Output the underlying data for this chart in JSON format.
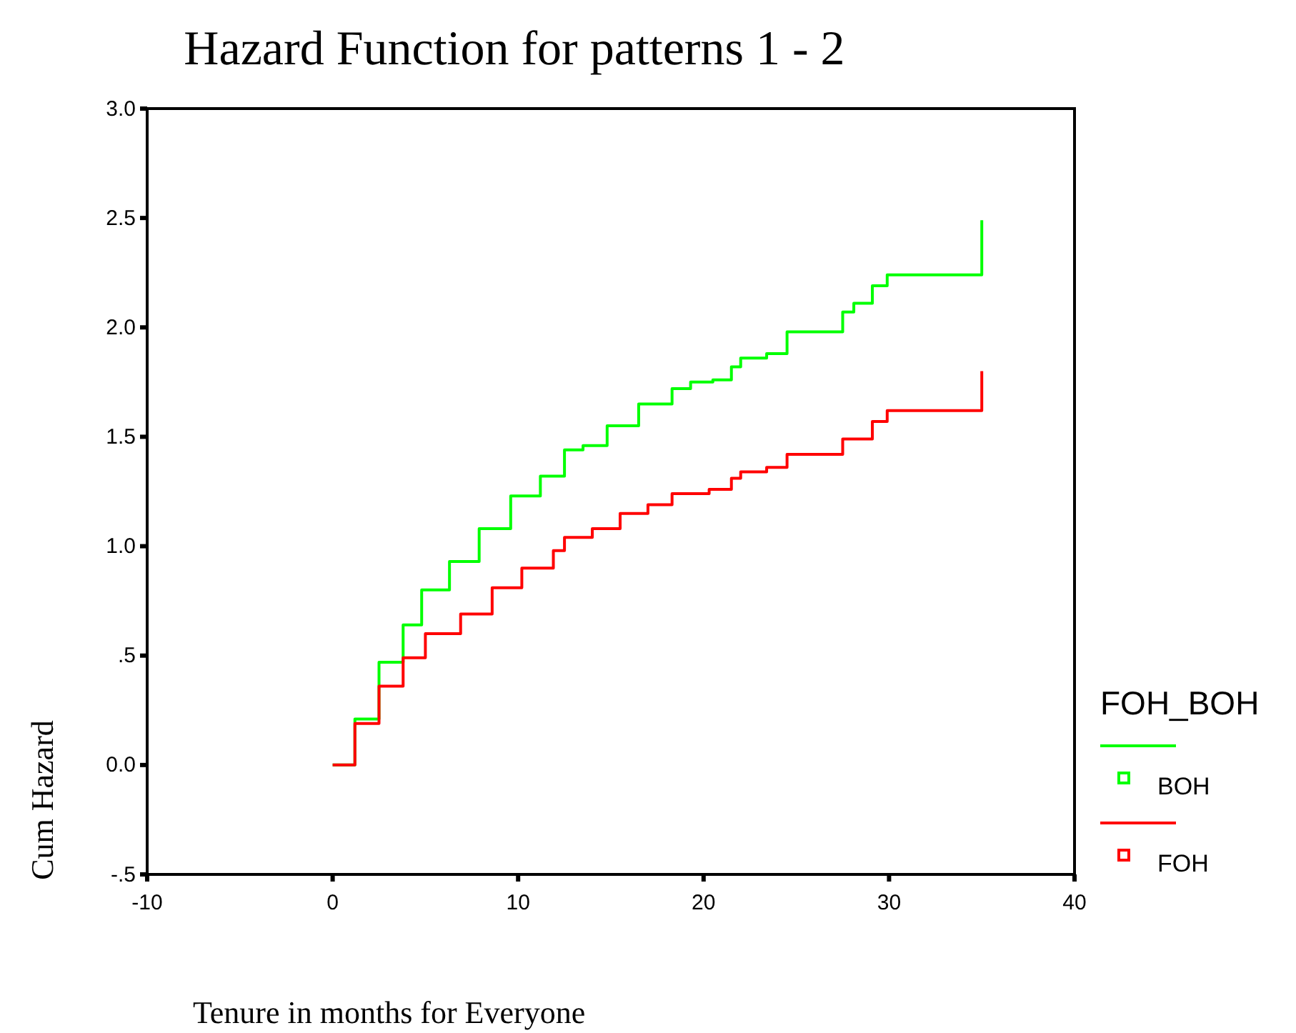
{
  "chart_data": {
    "type": "step",
    "title": "Hazard Function for patterns 1 - 2",
    "xlabel": "Tenure in months for Everyone",
    "ylabel": "Cum Hazard",
    "legend_title": "FOH_BOH",
    "legend": "right",
    "grid": false,
    "xlim": [
      -10,
      40
    ],
    "xticks": [
      -10,
      0,
      10,
      20,
      30,
      40
    ],
    "ylim": [
      -0.5,
      3.0
    ],
    "yticks": [
      {
        "value": -0.5,
        "label": "-.5"
      },
      {
        "value": 0,
        "label": "0.0"
      },
      {
        "value": 0.5,
        "label": ".5"
      },
      {
        "value": 1,
        "label": "1.0"
      },
      {
        "value": 1.5,
        "label": "1.5"
      },
      {
        "value": 2,
        "label": "2.0"
      },
      {
        "value": 2.5,
        "label": "2.5"
      },
      {
        "value": 3,
        "label": "3.0"
      }
    ],
    "series": [
      {
        "name": "BOH",
        "color": "#00ff00",
        "x": [
          0,
          1.2,
          2.5,
          3.8,
          4.8,
          6.3,
          7.9,
          9.6,
          11.2,
          12.5,
          13.5,
          14.8,
          16.5,
          18.3,
          19.3,
          20.5,
          21.5,
          22.0,
          23.4,
          24.5,
          27.1,
          27.5,
          28.1,
          29.1,
          29.9,
          35.0,
          35.0
        ],
        "values": [
          0,
          0.21,
          0.47,
          0.64,
          0.8,
          0.93,
          1.08,
          1.23,
          1.32,
          1.44,
          1.46,
          1.55,
          1.65,
          1.72,
          1.75,
          1.76,
          1.82,
          1.86,
          1.88,
          1.98,
          1.98,
          2.07,
          2.11,
          2.19,
          2.24,
          2.24,
          2.49
        ]
      },
      {
        "name": "FOH",
        "color": "#ff0000",
        "x": [
          0,
          1.2,
          2.5,
          3.8,
          5.0,
          6.9,
          8.6,
          10.2,
          11.9,
          12.5,
          14.0,
          15.5,
          17.0,
          18.3,
          20.3,
          21.5,
          22.0,
          23.4,
          24.5,
          27.1,
          27.5,
          29.1,
          29.9,
          35.0,
          35.0
        ],
        "values": [
          0,
          0.19,
          0.36,
          0.49,
          0.6,
          0.69,
          0.81,
          0.9,
          0.98,
          1.04,
          1.08,
          1.15,
          1.19,
          1.24,
          1.26,
          1.31,
          1.34,
          1.36,
          1.42,
          1.42,
          1.49,
          1.57,
          1.62,
          1.62,
          1.8
        ]
      }
    ]
  }
}
